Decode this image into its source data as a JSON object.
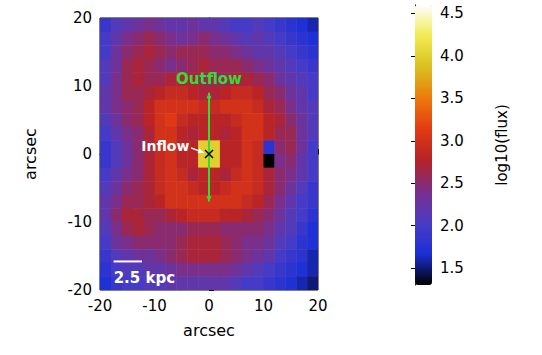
{
  "chart_data": {
    "type": "heatmap",
    "x_label": "arcsec",
    "y_label": "arcsec",
    "xlim": [
      -20,
      20
    ],
    "ylim": [
      -20,
      20
    ],
    "xticks": [
      -20,
      -10,
      0,
      10,
      20
    ],
    "yticks": [
      -20,
      -10,
      0,
      10,
      20
    ],
    "x": [
      -19,
      -17,
      -15,
      -13,
      -11,
      -9,
      -7,
      -5,
      -3,
      -1,
      1,
      3,
      5,
      7,
      9,
      11,
      13,
      15,
      17,
      19
    ],
    "y": [
      19,
      17,
      15,
      13,
      11,
      9,
      7,
      5,
      3,
      1,
      -1,
      -3,
      -5,
      -7,
      -9,
      -11,
      -13,
      -15,
      -17,
      -19
    ],
    "values": [
      [
        1.9,
        2.1,
        2.2,
        2.3,
        2.4,
        2.3,
        2.2,
        2.2,
        2.3,
        2.2,
        2.2,
        2.1,
        2.0,
        2.0,
        2.1,
        2.0,
        1.9,
        1.8,
        1.7,
        1.6
      ],
      [
        2.0,
        2.2,
        2.4,
        2.5,
        2.6,
        2.5,
        2.4,
        2.3,
        2.4,
        2.5,
        2.4,
        2.3,
        2.2,
        2.1,
        2.2,
        2.1,
        2.0,
        1.9,
        1.8,
        1.7
      ],
      [
        2.0,
        2.3,
        2.5,
        2.6,
        2.7,
        2.6,
        2.5,
        2.6,
        2.6,
        2.6,
        2.5,
        2.5,
        2.4,
        2.3,
        2.2,
        2.2,
        2.1,
        2.0,
        1.9,
        1.8
      ],
      [
        2.1,
        2.3,
        2.6,
        2.7,
        2.6,
        2.5,
        2.4,
        2.5,
        2.6,
        2.7,
        2.6,
        2.6,
        2.6,
        2.5,
        2.4,
        2.3,
        2.2,
        2.1,
        2.0,
        1.9
      ],
      [
        2.1,
        2.4,
        2.6,
        2.7,
        2.6,
        2.6,
        2.7,
        2.7,
        2.7,
        2.6,
        2.6,
        2.6,
        2.7,
        2.7,
        2.6,
        2.5,
        2.3,
        2.2,
        2.1,
        2.0
      ],
      [
        2.2,
        2.4,
        2.6,
        2.6,
        2.7,
        2.8,
        2.9,
        2.9,
        2.8,
        2.7,
        2.7,
        2.8,
        2.9,
        2.9,
        2.8,
        2.6,
        2.5,
        2.3,
        2.2,
        2.0
      ],
      [
        2.2,
        2.4,
        2.5,
        2.6,
        2.8,
        3.0,
        3.0,
        3.0,
        3.0,
        2.9,
        2.9,
        3.0,
        3.0,
        3.0,
        2.9,
        2.7,
        2.6,
        2.4,
        2.2,
        2.1
      ],
      [
        2.1,
        2.3,
        2.5,
        2.6,
        2.8,
        3.0,
        3.1,
        2.9,
        2.8,
        2.8,
        2.8,
        2.8,
        2.9,
        3.0,
        3.0,
        2.8,
        2.7,
        2.5,
        2.3,
        2.1
      ],
      [
        2.0,
        2.2,
        2.4,
        2.5,
        2.7,
        3.0,
        3.0,
        2.8,
        2.7,
        2.8,
        2.8,
        2.7,
        2.8,
        3.0,
        3.0,
        2.8,
        2.6,
        2.6,
        2.3,
        2.1
      ],
      [
        1.9,
        2.1,
        2.3,
        2.5,
        2.7,
        2.9,
        3.0,
        2.8,
        2.8,
        4.0,
        4.0,
        2.8,
        2.8,
        3.0,
        2.9,
        1.8,
        2.5,
        2.6,
        2.3,
        2.0
      ],
      [
        1.9,
        2.1,
        2.3,
        2.5,
        2.7,
        2.9,
        3.0,
        2.8,
        2.8,
        4.0,
        4.0,
        2.8,
        2.8,
        3.0,
        2.9,
        1.3,
        2.4,
        2.5,
        2.2,
        2.0
      ],
      [
        2.0,
        2.2,
        2.4,
        2.5,
        2.7,
        2.9,
        3.0,
        2.9,
        2.7,
        2.8,
        2.8,
        2.7,
        2.9,
        3.0,
        2.9,
        2.7,
        2.5,
        2.4,
        2.2,
        2.0
      ],
      [
        2.1,
        2.3,
        2.5,
        2.6,
        2.7,
        2.9,
        3.0,
        3.0,
        2.9,
        2.8,
        2.8,
        2.9,
        3.0,
        3.0,
        2.9,
        2.7,
        2.5,
        2.3,
        2.1,
        1.9
      ],
      [
        2.2,
        2.4,
        2.6,
        2.6,
        2.7,
        2.8,
        3.0,
        3.0,
        3.0,
        3.0,
        3.0,
        3.0,
        3.0,
        2.9,
        2.8,
        2.6,
        2.4,
        2.2,
        2.0,
        1.9
      ],
      [
        2.2,
        2.5,
        2.7,
        2.7,
        2.6,
        2.6,
        2.7,
        2.8,
        2.9,
        2.9,
        2.9,
        2.8,
        2.8,
        2.7,
        2.6,
        2.5,
        2.3,
        2.1,
        2.0,
        1.8
      ],
      [
        2.1,
        2.4,
        2.6,
        2.7,
        2.6,
        2.5,
        2.5,
        2.5,
        2.6,
        2.6,
        2.6,
        2.5,
        2.5,
        2.5,
        2.5,
        2.4,
        2.2,
        2.1,
        1.9,
        1.7
      ],
      [
        2.0,
        2.3,
        2.4,
        2.5,
        2.5,
        2.5,
        2.5,
        2.6,
        2.7,
        2.7,
        2.7,
        2.6,
        2.5,
        2.4,
        2.4,
        2.3,
        2.1,
        2.0,
        1.8,
        1.7
      ],
      [
        1.9,
        2.1,
        2.2,
        2.3,
        2.3,
        2.4,
        2.5,
        2.6,
        2.7,
        2.7,
        2.7,
        2.6,
        2.5,
        2.4,
        2.3,
        2.2,
        2.0,
        1.9,
        1.8,
        1.6
      ],
      [
        1.8,
        2.0,
        2.1,
        2.1,
        2.2,
        2.2,
        2.3,
        2.4,
        2.4,
        2.4,
        2.4,
        2.4,
        2.3,
        2.2,
        2.1,
        2.0,
        1.9,
        1.8,
        1.7,
        1.6
      ],
      [
        1.7,
        1.9,
        2.0,
        2.0,
        2.1,
        2.1,
        2.2,
        2.2,
        2.2,
        2.2,
        2.2,
        2.2,
        2.1,
        2.0,
        2.0,
        1.9,
        1.8,
        1.7,
        1.6,
        1.5
      ]
    ],
    "colorbar_label": "log10(flux)",
    "colorbar_lim": [
      1.3,
      4.6
    ],
    "colorbar_ticks": [
      1.5,
      {
        "value": 2,
        "label": "2.0"
      },
      2.5,
      {
        "value": 3,
        "label": "3.0"
      },
      3.5,
      {
        "value": 4,
        "label": "4.0"
      },
      4.5
    ],
    "annotations": [
      {
        "text": "Outflow",
        "color": "#33dd33"
      },
      {
        "text": "Inflow",
        "color": "#ffffff"
      },
      {
        "text": "2.5 kpc",
        "color": "#ffffff"
      }
    ]
  }
}
